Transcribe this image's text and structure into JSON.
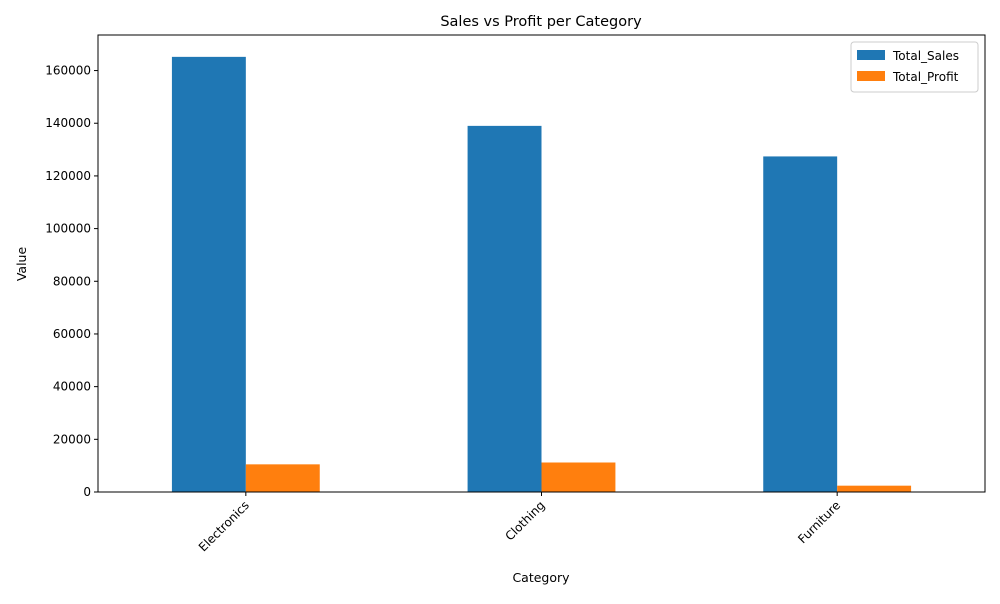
{
  "chart_data": {
    "type": "bar",
    "title": "Sales vs Profit per Category",
    "xlabel": "Category",
    "ylabel": "Value",
    "categories": [
      "Electronics",
      "Clothing",
      "Furniture"
    ],
    "series": [
      {
        "name": "Total_Sales",
        "values": [
          165200,
          139000,
          127400
        ],
        "color": "#1f77b4"
      },
      {
        "name": "Total_Profit",
        "values": [
          10500,
          11200,
          2400
        ],
        "color": "#ff7f0e"
      }
    ],
    "ylim": [
      0,
      173500
    ],
    "yticks": [
      0,
      20000,
      40000,
      60000,
      80000,
      100000,
      120000,
      140000,
      160000
    ],
    "ytick_labels": [
      "0",
      "20000",
      "40000",
      "60000",
      "80000",
      "100000",
      "120000",
      "140000",
      "160000"
    ],
    "grid": false,
    "legend_position": "top-right",
    "xtick_rotation": 45
  }
}
